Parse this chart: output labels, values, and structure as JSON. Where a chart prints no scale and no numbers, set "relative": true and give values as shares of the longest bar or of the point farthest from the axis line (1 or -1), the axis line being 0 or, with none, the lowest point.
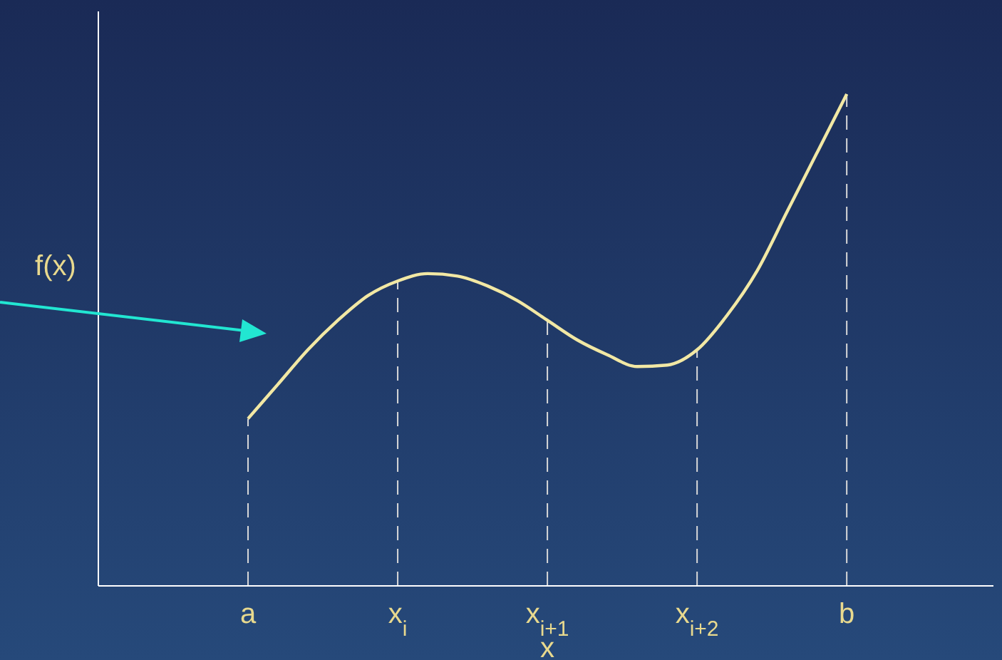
{
  "chart_data": {
    "type": "line",
    "relative": true,
    "xlabel": "x",
    "annotations": [
      "f(x)"
    ],
    "categories": [
      "a",
      null,
      null,
      null,
      null,
      "x$_{i}$",
      null,
      null,
      null,
      null,
      "x$_{i+1}$",
      null,
      null,
      null,
      null,
      "x$_{i+2}$",
      null,
      null,
      null,
      null,
      "b"
    ],
    "series": [
      {
        "color": "#f2e8a4",
        "values": [
          0.34,
          0.41,
          0.48,
          0.54,
          0.59,
          0.62,
          0.635,
          0.63,
          0.61,
          0.58,
          0.54,
          0.5,
          0.47,
          0.446,
          0.449,
          0.48,
          0.55,
          0.64,
          0.76,
          0.88,
          1
        ]
      }
    ],
    "ref_lines": [
      {
        "axis": "x",
        "value": "a",
        "color": "#d8d8d8",
        "line_style": "dashed"
      },
      {
        "axis": "x",
        "value": "x$_{i}$",
        "color": "#d8d8d8",
        "line_style": "dashed"
      },
      {
        "axis": "x",
        "value": "x$_{i+1}$",
        "color": "#d8d8d8",
        "line_style": "dashed"
      },
      {
        "axis": "x",
        "value": "x$_{i+2}$",
        "color": "#d8d8d8",
        "line_style": "dashed"
      },
      {
        "axis": "x",
        "value": "b",
        "color": "#d8d8d8",
        "line_style": "dashed"
      }
    ],
    "marker": "none",
    "line_style": "solid"
  }
}
